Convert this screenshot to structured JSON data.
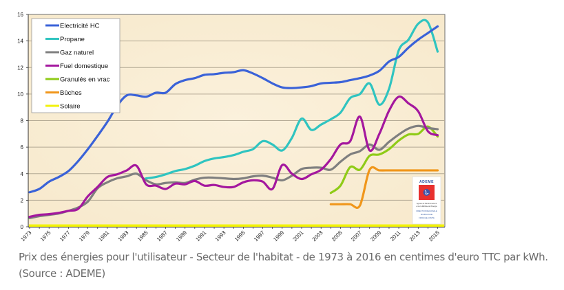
{
  "chart_data": {
    "type": "line",
    "title": "",
    "xlabel": "",
    "ylabel": "",
    "xlim": [
      1973,
      2015
    ],
    "ylim": [
      0,
      16
    ],
    "grid": true,
    "legend_position": "top-left",
    "y_ticks": [
      0,
      2,
      4,
      6,
      8,
      10,
      12,
      14,
      16
    ],
    "x_tick_labels": [
      "1973",
      "1975",
      "1977",
      "1979",
      "1981",
      "1983",
      "1985",
      "1987",
      "1989",
      "1991",
      "1993",
      "1995",
      "1997",
      "1999",
      "2001",
      "2003",
      "2005",
      "2007",
      "2009",
      "2011",
      "2013",
      "2015"
    ],
    "series": [
      {
        "name": "Electricité HC",
        "color": "#3a62d8",
        "x": [
          1973,
          1974,
          1975,
          1976,
          1977,
          1978,
          1979,
          1980,
          1981,
          1982,
          1983,
          1984,
          1985,
          1986,
          1987,
          1988,
          1989,
          1990,
          1991,
          1992,
          1993,
          1994,
          1995,
          1996,
          1997,
          1998,
          1999,
          2000,
          2001,
          2002,
          2003,
          2004,
          2005,
          2006,
          2007,
          2008,
          2009,
          2010,
          2011,
          2012,
          2013,
          2014,
          2015
        ],
        "values": [
          2.6,
          2.85,
          3.4,
          3.75,
          4.2,
          4.95,
          5.85,
          6.85,
          7.9,
          9.1,
          9.9,
          9.9,
          9.8,
          10.1,
          10.1,
          10.75,
          11.05,
          11.2,
          11.45,
          11.5,
          11.6,
          11.65,
          11.8,
          11.55,
          11.2,
          10.8,
          10.5,
          10.45,
          10.5,
          10.6,
          10.8,
          10.85,
          10.9,
          11.05,
          11.2,
          11.4,
          11.75,
          12.45,
          12.8,
          13.5,
          14.1,
          14.6,
          15.1
        ]
      },
      {
        "name": "Propane",
        "color": "#2fc4c0",
        "x": [
          1985,
          1986,
          1987,
          1988,
          1989,
          1990,
          1991,
          1992,
          1993,
          1994,
          1995,
          1996,
          1997,
          1998,
          1999,
          2000,
          2001,
          2002,
          2003,
          2004,
          2005,
          2006,
          2007,
          2008,
          2009,
          2010,
          2011,
          2012,
          2013,
          2014,
          2015
        ],
        "values": [
          3.65,
          3.75,
          3.95,
          4.2,
          4.35,
          4.6,
          4.95,
          5.15,
          5.25,
          5.4,
          5.65,
          5.85,
          6.45,
          6.2,
          5.75,
          6.7,
          8.15,
          7.3,
          7.7,
          8.1,
          8.6,
          9.7,
          10.0,
          10.8,
          9.2,
          10.4,
          13.3,
          14.1,
          15.3,
          15.4,
          13.2
        ]
      },
      {
        "name": "Gaz naturel",
        "color": "#7f7f7f",
        "x": [
          1973,
          1974,
          1975,
          1976,
          1977,
          1978,
          1979,
          1980,
          1981,
          1982,
          1983,
          1984,
          1985,
          1986,
          1987,
          1988,
          1989,
          1990,
          1991,
          1992,
          1993,
          1994,
          1995,
          1996,
          1997,
          1998,
          1999,
          2000,
          2001,
          2002,
          2003,
          2004,
          2005,
          2006,
          2007,
          2008,
          2009,
          2010,
          2011,
          2012,
          2013,
          2014,
          2015
        ],
        "values": [
          0.65,
          0.8,
          0.9,
          1.0,
          1.2,
          1.45,
          1.9,
          2.9,
          3.35,
          3.65,
          3.8,
          4.0,
          3.5,
          3.2,
          3.3,
          3.35,
          3.3,
          3.55,
          3.7,
          3.7,
          3.65,
          3.6,
          3.65,
          3.8,
          3.85,
          3.7,
          3.5,
          3.85,
          4.35,
          4.45,
          4.45,
          4.3,
          4.9,
          5.45,
          5.7,
          6.2,
          5.8,
          6.4,
          6.95,
          7.4,
          7.6,
          7.45,
          7.35
        ]
      },
      {
        "name": "Fuel domestique",
        "color": "#a4179e",
        "x": [
          1973,
          1974,
          1975,
          1976,
          1977,
          1978,
          1979,
          1980,
          1981,
          1982,
          1983,
          1984,
          1985,
          1986,
          1987,
          1988,
          1989,
          1990,
          1991,
          1992,
          1993,
          1994,
          1995,
          1996,
          1997,
          1998,
          1999,
          2000,
          2001,
          2002,
          2003,
          2004,
          2005,
          2006,
          2007,
          2008,
          2009,
          2010,
          2011,
          2012,
          2013,
          2014,
          2015
        ],
        "values": [
          0.75,
          0.9,
          0.95,
          1.05,
          1.2,
          1.35,
          2.3,
          3.0,
          3.75,
          3.95,
          4.25,
          4.6,
          3.2,
          3.1,
          2.85,
          3.25,
          3.2,
          3.45,
          3.1,
          3.15,
          3.0,
          3.0,
          3.35,
          3.5,
          3.4,
          2.85,
          4.65,
          4.0,
          3.6,
          3.95,
          4.3,
          5.1,
          6.2,
          6.45,
          8.3,
          5.75,
          7.0,
          8.75,
          9.8,
          9.3,
          8.7,
          7.2,
          6.9
        ]
      },
      {
        "name": "Granulés en vrac",
        "color": "#8fcb17",
        "x": [
          2004,
          2005,
          2006,
          2007,
          2008,
          2009,
          2010,
          2011,
          2012,
          2013,
          2014,
          2015
        ],
        "values": [
          2.55,
          3.1,
          4.5,
          4.3,
          5.35,
          5.45,
          5.85,
          6.5,
          6.95,
          7.0,
          7.55,
          6.8
        ]
      },
      {
        "name": "Bûches",
        "color": "#f0961a",
        "x": [
          2004,
          2005,
          2006,
          2007,
          2008,
          2009,
          2010,
          2011,
          2012,
          2013,
          2014,
          2015
        ],
        "values": [
          1.7,
          1.7,
          1.7,
          1.6,
          4.3,
          4.25,
          4.25,
          4.25,
          4.25,
          4.25,
          4.25,
          4.25
        ]
      },
      {
        "name": "Solaire",
        "color": "#f2f20a",
        "x": [
          1973,
          2015
        ],
        "values": [
          0.08,
          0.08
        ]
      }
    ]
  },
  "logo": {
    "name": "ADEME",
    "line1": "Agence de l'Environnement",
    "line2": "et de la Maîtrise de l'Energie",
    "line3": "DIRECTION REGIONALE",
    "line4": "BOURGOGNE",
    "line5": "FRANCHE-COMTE",
    "color": "#e8302e"
  },
  "caption": {
    "text": "Prix des énergies pour l'utilisateur - Secteur de l'habitat - de 1973 à 2016 en centimes d'euro TTC par kWh. (Source : ADEME)"
  }
}
